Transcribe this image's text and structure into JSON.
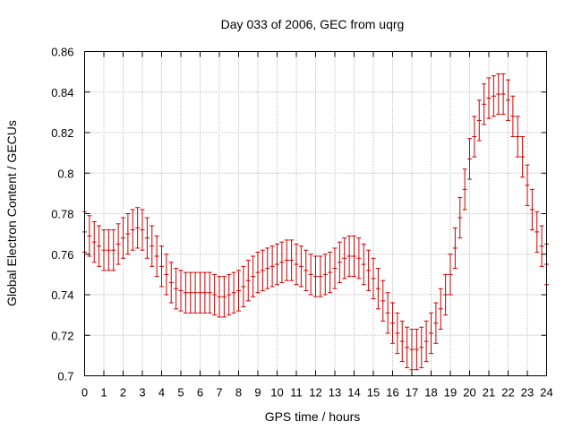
{
  "chart_data": {
    "type": "line",
    "title": "Day 033 of 2006, GEC from uqrg",
    "xlabel": "GPS time / hours",
    "ylabel": "Global Electron Content / GECUs",
    "xlim": [
      0,
      24
    ],
    "ylim": [
      0.7,
      0.86
    ],
    "x_ticks": [
      0,
      1,
      2,
      3,
      4,
      5,
      6,
      7,
      8,
      9,
      10,
      11,
      12,
      13,
      14,
      15,
      16,
      17,
      18,
      19,
      20,
      21,
      22,
      23,
      24
    ],
    "y_ticks": [
      0.7,
      0.72,
      0.74,
      0.76,
      0.78,
      0.8,
      0.82,
      0.84,
      0.86
    ],
    "y_tick_labels": [
      "0.7",
      "0.72",
      "0.74",
      "0.76",
      "0.78",
      "0.8",
      "0.82",
      "0.84",
      "0.86"
    ],
    "grid": true,
    "legend": "none",
    "error_half_width": 0.01,
    "series_color": "#cc0000",
    "series": [
      {
        "x": [
          0,
          0.25,
          0.5,
          0.75,
          1,
          1.25,
          1.5,
          1.75,
          2,
          2.25,
          2.5,
          2.75,
          3,
          3.25,
          3.5,
          3.75,
          4,
          4.25,
          4.5,
          4.75,
          5,
          5.25,
          5.5,
          5.75,
          6,
          6.25,
          6.5,
          6.75,
          7,
          7.25,
          7.5,
          7.75,
          8,
          8.25,
          8.5,
          8.75,
          9,
          9.25,
          9.5,
          9.75,
          10,
          10.25,
          10.5,
          10.75,
          11,
          11.25,
          11.5,
          11.75,
          12,
          12.25,
          12.5,
          12.75,
          13,
          13.25,
          13.5,
          13.75,
          14,
          14.25,
          14.5,
          14.75,
          15,
          15.25,
          15.5,
          15.75,
          16,
          16.25,
          16.5,
          16.75,
          17,
          17.25,
          17.5,
          17.75,
          18,
          18.25,
          18.5,
          18.75,
          19,
          19.25,
          19.5,
          19.75,
          20,
          20.25,
          20.5,
          20.75,
          21,
          21.25,
          21.5,
          21.75,
          22,
          22.25,
          22.5,
          22.75,
          23,
          23.25,
          23.5,
          23.75,
          24
        ],
        "y": [
          0.771,
          0.769,
          0.766,
          0.764,
          0.762,
          0.762,
          0.762,
          0.765,
          0.768,
          0.77,
          0.772,
          0.773,
          0.772,
          0.768,
          0.764,
          0.759,
          0.754,
          0.75,
          0.746,
          0.743,
          0.742,
          0.741,
          0.741,
          0.741,
          0.741,
          0.741,
          0.741,
          0.74,
          0.739,
          0.739,
          0.74,
          0.741,
          0.742,
          0.744,
          0.747,
          0.749,
          0.751,
          0.752,
          0.753,
          0.754,
          0.755,
          0.756,
          0.757,
          0.757,
          0.755,
          0.754,
          0.752,
          0.75,
          0.749,
          0.749,
          0.75,
          0.751,
          0.753,
          0.756,
          0.758,
          0.759,
          0.759,
          0.758,
          0.755,
          0.752,
          0.748,
          0.743,
          0.737,
          0.731,
          0.726,
          0.721,
          0.717,
          0.714,
          0.713,
          0.713,
          0.714,
          0.717,
          0.721,
          0.726,
          0.733,
          0.74,
          0.75,
          0.763,
          0.778,
          0.792,
          0.807,
          0.818,
          0.826,
          0.834,
          0.837,
          0.838,
          0.839,
          0.839,
          0.836,
          0.828,
          0.818,
          0.808,
          0.794,
          0.782,
          0.771,
          0.764,
          0.755
        ]
      }
    ]
  }
}
